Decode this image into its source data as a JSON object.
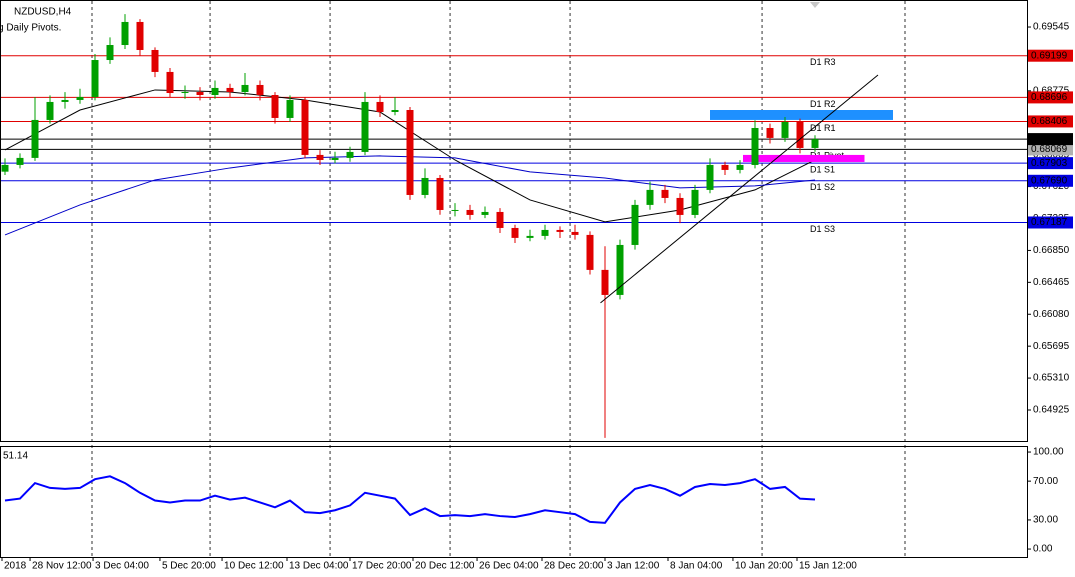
{
  "chart_data": [
    {
      "type": "candlestick",
      "title": "NZDUSD,H4",
      "indicator_label": "g Daily Pivots.",
      "open": [
        0.678,
        0.67881,
        0.67966,
        0.68424,
        0.68641,
        0.68665,
        0.68701,
        0.69147,
        0.69328,
        0.69606,
        0.69268,
        0.69003,
        0.68749,
        0.68761,
        0.68725,
        0.6881,
        0.68761,
        0.68846,
        0.68725,
        0.68448,
        0.68665,
        0.68002,
        0.67941,
        0.67966,
        0.68038,
        0.68641,
        0.6852,
        0.68544,
        0.67519,
        0.67724,
        0.67338,
        0.67338,
        0.67278,
        0.67314,
        0.67121,
        0.67001,
        0.67025,
        0.67097,
        0.67073,
        0.67037,
        0.66615,
        0.66313,
        0.66916,
        0.67399,
        0.6758,
        0.67483,
        0.67278,
        0.6758,
        0.67881,
        0.67821,
        0.67881,
        0.68327,
        0.68207,
        0.684,
        0.68086
      ],
      "high": [
        0.6796,
        0.6802,
        0.687,
        0.6872,
        0.6876,
        0.688,
        0.6922,
        0.6942,
        0.697,
        0.6964,
        0.693,
        0.6905,
        0.6884,
        0.6882,
        0.689,
        0.6886,
        0.6899,
        0.689,
        0.6876,
        0.6872,
        0.687,
        0.6806,
        0.6804,
        0.681,
        0.6876,
        0.6872,
        0.687,
        0.6858,
        0.6784,
        0.6776,
        0.6742,
        0.674,
        0.6738,
        0.6736,
        0.6716,
        0.671,
        0.6716,
        0.6714,
        0.6716,
        0.6708,
        0.669,
        0.6698,
        0.6746,
        0.6768,
        0.6764,
        0.6754,
        0.6764,
        0.6796,
        0.6792,
        0.6794,
        0.6842,
        0.6838,
        0.6846,
        0.6844,
        0.6824
      ],
      "low": [
        0.6776,
        0.6784,
        0.6793,
        0.6838,
        0.6856,
        0.6862,
        0.6866,
        0.691,
        0.6928,
        0.692,
        0.6894,
        0.687,
        0.6868,
        0.6866,
        0.6868,
        0.687,
        0.6872,
        0.6866,
        0.6838,
        0.684,
        0.6796,
        0.6788,
        0.679,
        0.6792,
        0.68,
        0.6846,
        0.6848,
        0.6746,
        0.6748,
        0.6728,
        0.6726,
        0.6722,
        0.6724,
        0.6706,
        0.6694,
        0.6696,
        0.6698,
        0.67,
        0.6698,
        0.6656,
        0.64589,
        0.6626,
        0.6686,
        0.6734,
        0.6742,
        0.6718,
        0.6724,
        0.6754,
        0.6776,
        0.6778,
        0.6784,
        0.6814,
        0.6816,
        0.6802,
        0.6804
      ],
      "close": [
        0.67881,
        0.67966,
        0.68424,
        0.68641,
        0.68665,
        0.68701,
        0.69147,
        0.69328,
        0.69606,
        0.69268,
        0.69003,
        0.68749,
        0.68761,
        0.68725,
        0.6881,
        0.68761,
        0.68846,
        0.68725,
        0.68448,
        0.68665,
        0.68002,
        0.67941,
        0.67966,
        0.68038,
        0.68641,
        0.6852,
        0.68544,
        0.67519,
        0.67724,
        0.67338,
        0.67338,
        0.67278,
        0.67314,
        0.67121,
        0.67001,
        0.67025,
        0.67097,
        0.67073,
        0.67037,
        0.66615,
        0.66313,
        0.66916,
        0.67399,
        0.6758,
        0.67483,
        0.67278,
        0.6758,
        0.67881,
        0.67821,
        0.67881,
        0.68327,
        0.68207,
        0.684,
        0.68086,
        0.68193
      ],
      "up_color": "#00a000",
      "down_color": "#e00000",
      "ylim": [
        0.64563,
        0.69871
      ],
      "yticks": [
        0.69545,
        {
          "value": 0.6916,
          "label": "0.69160"
        },
        0.68775,
        {
          "value": 0.6839,
          "label": "0.68390"
        },
        0.68005,
        {
          "value": 0.6762,
          "label": "0.67620"
        },
        0.67235,
        {
          "value": 0.6685,
          "label": "0.66850"
        },
        0.66465,
        {
          "value": 0.6608,
          "label": "0.66080"
        },
        0.65695,
        {
          "value": 0.6531,
          "label": "0.65310"
        },
        0.64925
      ],
      "xticks": [
        {
          "value": -0.2,
          "label": "2018"
        },
        {
          "value": 1.67,
          "label": "28 Nov 12:00"
        },
        {
          "value": 5.87,
          "label": "3 Dec 04:00"
        },
        {
          "value": 10.33,
          "label": "5 Dec 20:00"
        },
        {
          "value": 14.47,
          "label": "10 Dec 12:00"
        },
        {
          "value": 18.8,
          "label": "13 Dec 04:00"
        },
        {
          "value": 23,
          "label": "17 Dec 20:00"
        },
        {
          "value": 27.2,
          "label": "20 Dec 12:00"
        },
        {
          "value": 31.47,
          "label": "26 Dec 04:00"
        },
        {
          "value": 35.8,
          "label": "28 Dec 20:00"
        },
        {
          "value": 40,
          "label": "3 Jan 12:00"
        },
        {
          "value": 44.2,
          "label": "8 Jan 04:00"
        },
        {
          "value": 48.53,
          "label": "10 Jan 20:00"
        },
        {
          "value": 52.8,
          "label": "15 Jan 12:00"
        }
      ],
      "xgrid": [
        5.8,
        13.67,
        21.67,
        29.67,
        37.67,
        50.47,
        60
      ],
      "moving_averages": [
        {
          "color": "#000000",
          "x": [
            0,
            5,
            10,
            15,
            20,
            25,
            30,
            35,
            40,
            45,
            50,
            54
          ],
          "values": [
            0.68062,
            0.68544,
            0.68786,
            0.68761,
            0.68665,
            0.6852,
            0.67941,
            0.67459,
            0.67194,
            0.67338,
            0.6758,
            0.67941
          ]
        },
        {
          "color": "#0000c8",
          "x": [
            0,
            5,
            10,
            15,
            20,
            25,
            30,
            35,
            40,
            45,
            50,
            54
          ],
          "values": [
            0.67037,
            0.67399,
            0.677,
            0.67845,
            0.67966,
            0.6799,
            0.67966,
            0.67797,
            0.67724,
            0.67604,
            0.67628,
            0.677
          ]
        }
      ],
      "pivots": [
        {
          "name": "D1 R3",
          "value": 0.69199,
          "color": "#e00000"
        },
        {
          "name": "D1 R2",
          "value": 0.68696,
          "color": "#e00000"
        },
        {
          "name": "D1 R1",
          "value": 0.68406,
          "color": "#e00000"
        },
        {
          "name": "D1 Pivot",
          "value": 0.68069,
          "color": "#000000",
          "label_color": "#b0b0b0"
        },
        {
          "name": "D1 S1",
          "value": 0.67903,
          "color": "#0000e0"
        },
        {
          "name": "D1 S2",
          "value": 0.6769,
          "value_label": "0.67690",
          "color": "#0000e0"
        },
        {
          "name": "D1 S3",
          "value": 0.67187,
          "color": "#0000e0"
        }
      ],
      "current_price": 0.68193,
      "trendline": {
        "x": [
          39.7,
          58.2
        ],
        "values": [
          0.66217,
          0.68966
        ]
      },
      "zones": [
        {
          "color": "#1e90ff",
          "x": [
            47,
            59.2
          ],
          "values": [
            0.68544,
            0.68424
          ]
        },
        {
          "color": "#ff00ff",
          "x": [
            49.2,
            57.3
          ],
          "values": [
            0.68002,
            0.67917
          ]
        }
      ]
    },
    {
      "type": "line",
      "label": "51.14",
      "color": "#0000ff",
      "values": [
        50,
        52,
        68,
        63,
        62,
        63,
        72,
        75,
        68,
        58,
        50,
        48,
        50,
        50,
        55,
        51,
        53,
        48,
        43,
        50,
        38,
        37,
        40,
        45,
        58,
        55,
        52,
        35,
        42,
        34,
        35,
        34,
        36,
        34,
        33,
        36,
        40,
        38,
        36,
        28,
        27,
        48,
        62,
        66,
        62,
        55,
        64,
        67,
        66,
        68,
        72,
        62,
        64,
        52,
        51.14
      ],
      "ylim": [
        -8.2,
        105.2
      ],
      "yticks": [
        {
          "value": 100,
          "label": "100.00"
        },
        {
          "value": 70,
          "label": "70.00"
        },
        {
          "value": 30,
          "label": "30.00"
        },
        {
          "value": 0,
          "label": "0.00"
        }
      ]
    }
  ]
}
